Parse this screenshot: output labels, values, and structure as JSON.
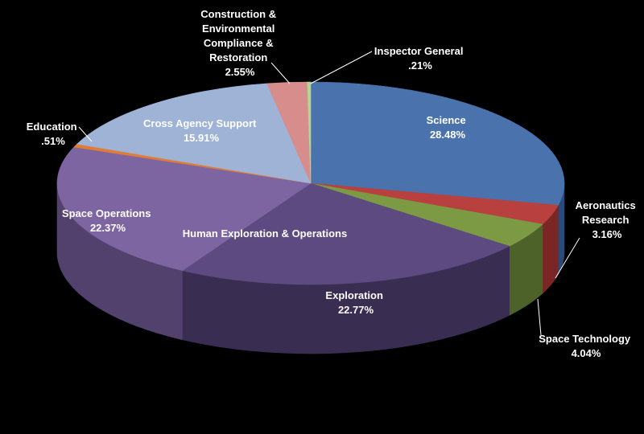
{
  "chart_data": {
    "type": "pie",
    "style": "3d",
    "group_label": "Human Exploration & Operations",
    "slices": [
      {
        "name": "Science",
        "value_label": "28.48%",
        "value": 28.48,
        "color": "#4a72ac",
        "side": "#2c4a78",
        "label_color": "#ffffff"
      },
      {
        "name": "Aeronautics Research",
        "value_label": "3.16%",
        "value": 3.16,
        "color": "#b8413f",
        "side": "#7a2624",
        "label_color": "#ffffff"
      },
      {
        "name": "Space Technology",
        "value_label": "4.04%",
        "value": 4.04,
        "color": "#7c9a44",
        "side": "#4c6228",
        "label_color": "#ffffff"
      },
      {
        "name": "Exploration",
        "value_label": "22.77%",
        "value": 22.77,
        "color": "#5d4a80",
        "side": "#3a2d52",
        "label_color": "#ffffff"
      },
      {
        "name": "Space Operations",
        "value_label": "22.37%",
        "value": 22.37,
        "color": "#7d65a2",
        "side": "#52416c",
        "label_color": "#ffffff"
      },
      {
        "name": "Education",
        "value_label": ".51%",
        "value": 0.51,
        "color": "#e07c34",
        "side": "#9a521e",
        "label_color": "#ffffff"
      },
      {
        "name": "Cross Agency Support",
        "value_label": "15.91%",
        "value": 15.91,
        "color": "#9eb3d6",
        "side": "#6a7c9c",
        "label_color": "#ffffff"
      },
      {
        "name": "Construction & Environmental Compliance & Restoration",
        "value_label": "2.55%",
        "value": 2.55,
        "color": "#d68d8c",
        "side": "#94605f",
        "label_color": "#ffffff"
      },
      {
        "name": "Inspector General",
        "value_label": ".21%",
        "value": 0.21,
        "color": "#b9d48c",
        "side": "#7e965e",
        "label_color": "#ffffff"
      }
    ]
  }
}
